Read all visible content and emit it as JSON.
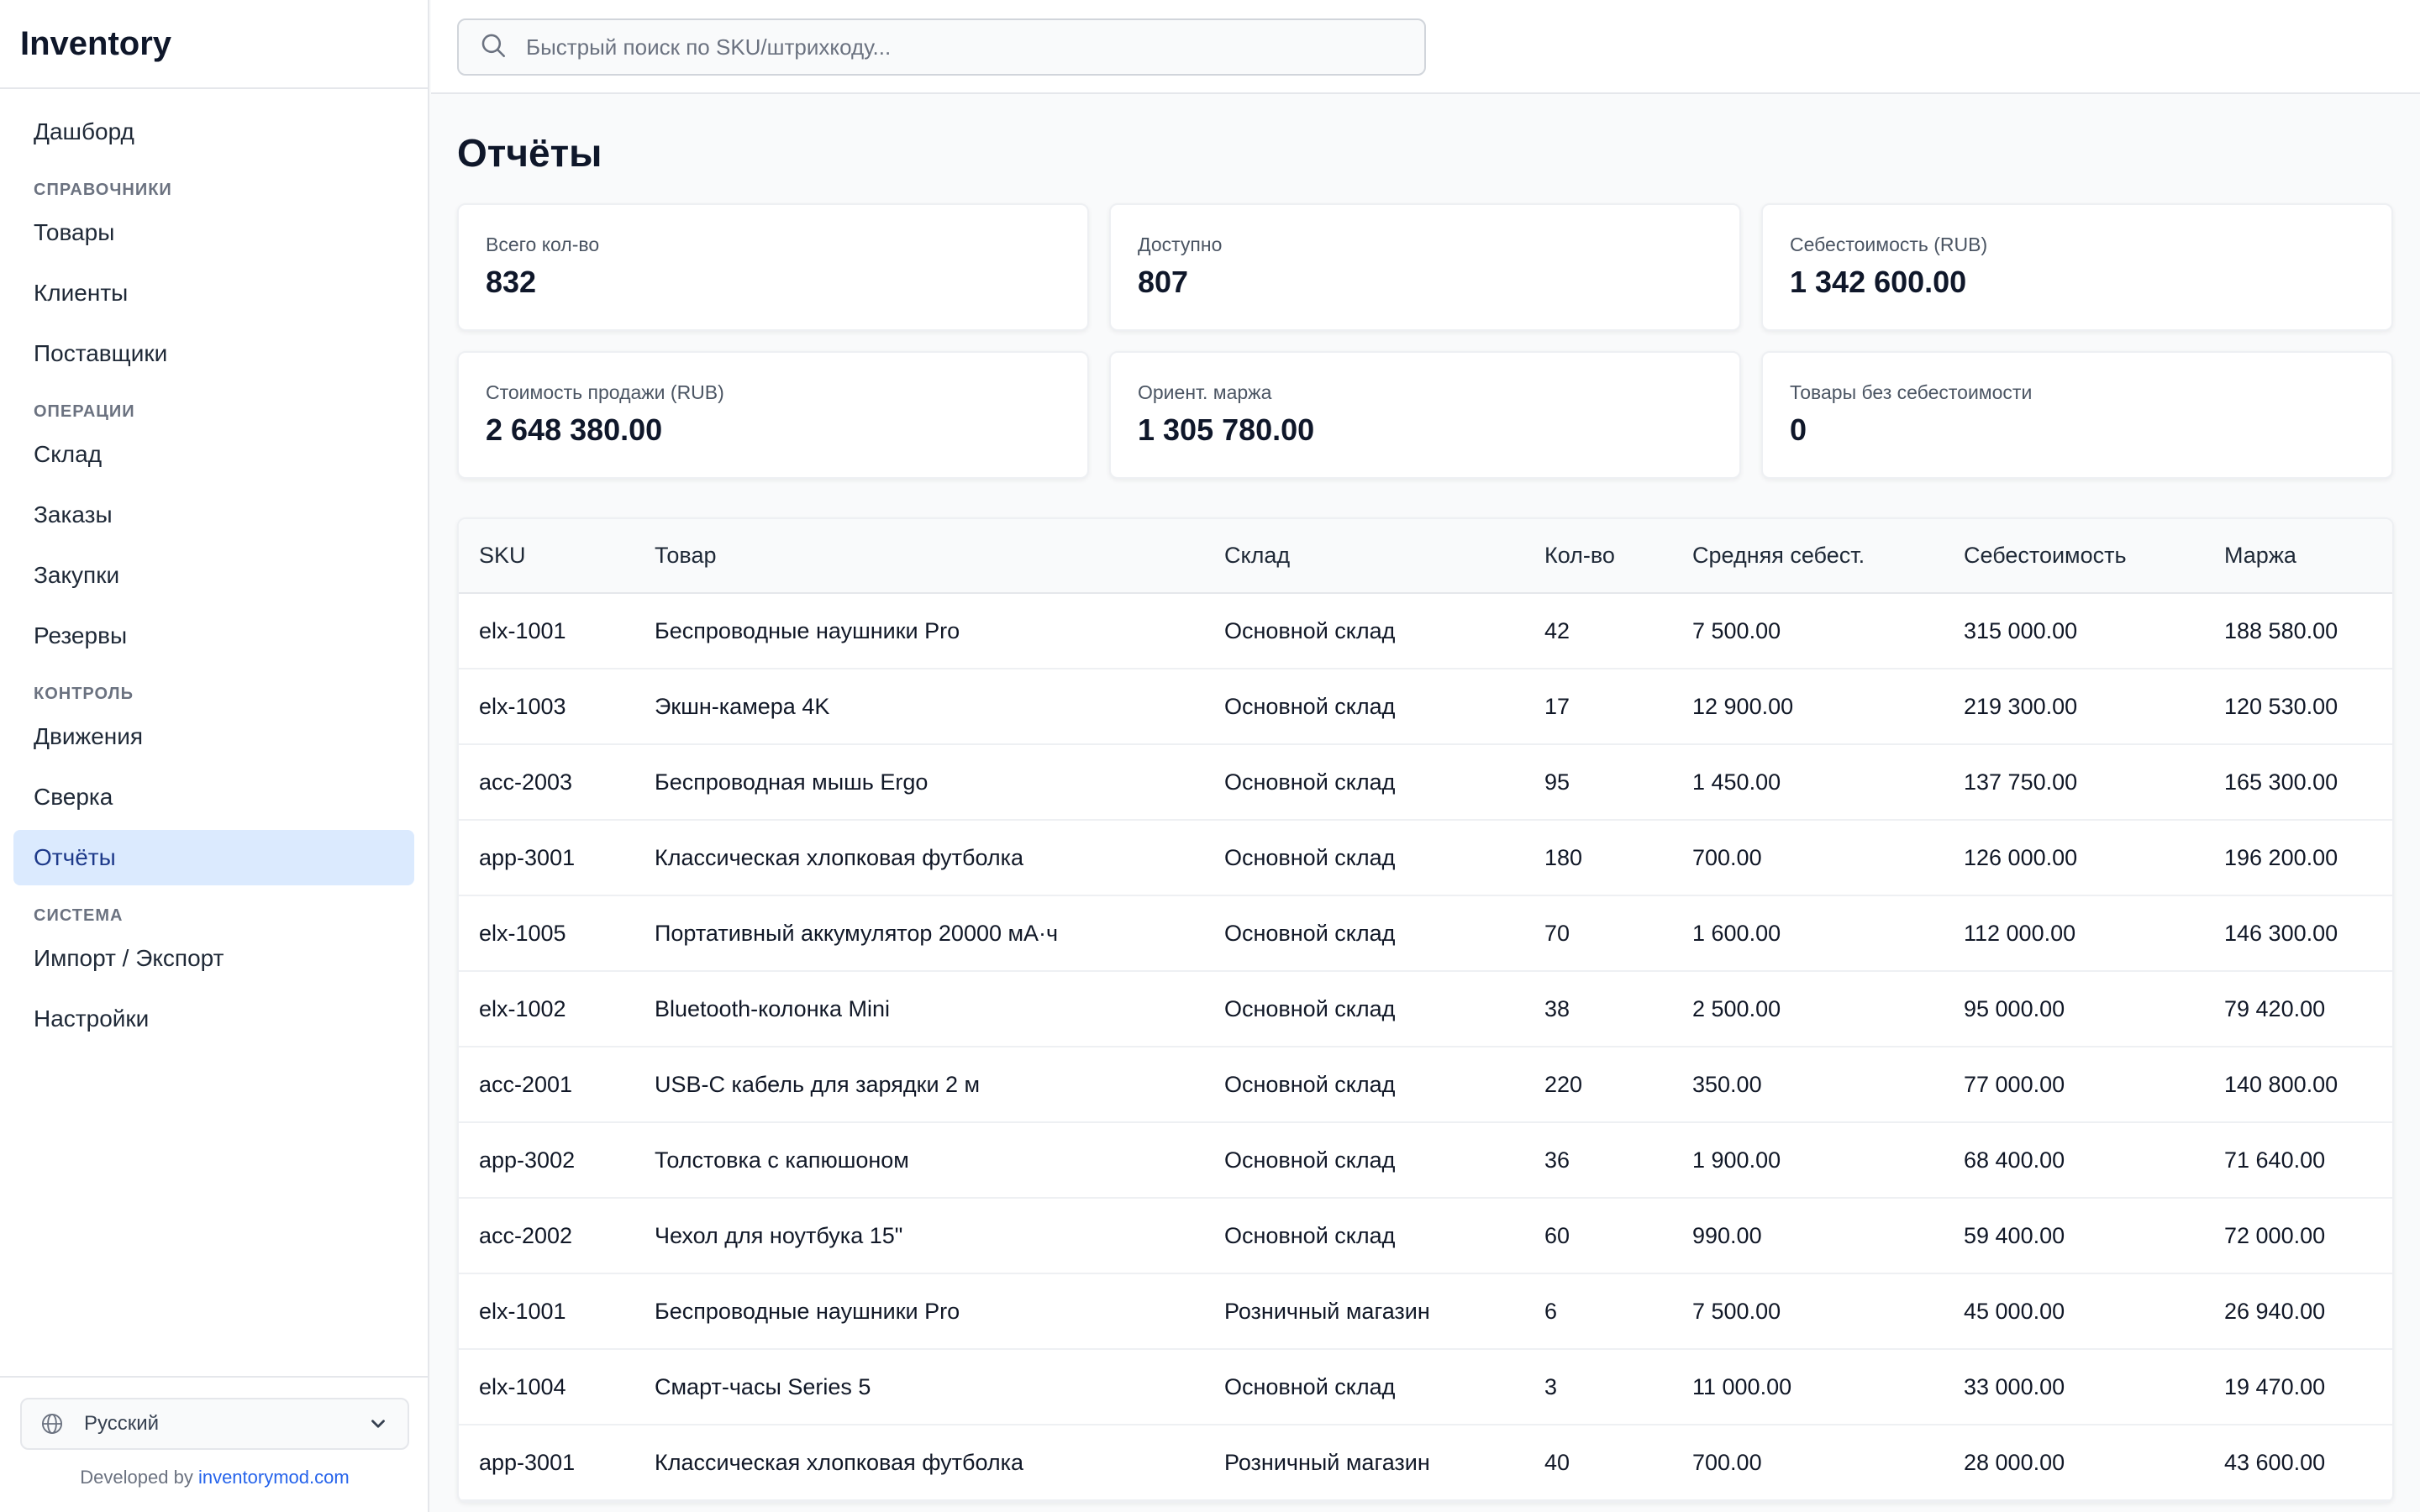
{
  "app": {
    "title": "Inventory"
  },
  "search": {
    "placeholder": "Быстрый поиск по SKU/штрихкоду..."
  },
  "sidebar": {
    "items": [
      {
        "type": "item",
        "label": "Дашборд",
        "name": "sidebar-item-dashboard"
      },
      {
        "type": "section",
        "label": "Справочники",
        "name": "sidebar-section-directories"
      },
      {
        "type": "item",
        "label": "Товары",
        "name": "sidebar-item-products"
      },
      {
        "type": "item",
        "label": "Клиенты",
        "name": "sidebar-item-clients"
      },
      {
        "type": "item",
        "label": "Поставщики",
        "name": "sidebar-item-suppliers"
      },
      {
        "type": "section",
        "label": "Операции",
        "name": "sidebar-section-operations"
      },
      {
        "type": "item",
        "label": "Склад",
        "name": "sidebar-item-warehouse"
      },
      {
        "type": "item",
        "label": "Заказы",
        "name": "sidebar-item-orders"
      },
      {
        "type": "item",
        "label": "Закупки",
        "name": "sidebar-item-purchases"
      },
      {
        "type": "item",
        "label": "Резервы",
        "name": "sidebar-item-reserves"
      },
      {
        "type": "section",
        "label": "Контроль",
        "name": "sidebar-section-control"
      },
      {
        "type": "item",
        "label": "Движения",
        "name": "sidebar-item-movements"
      },
      {
        "type": "item",
        "label": "Сверка",
        "name": "sidebar-item-reconciliation"
      },
      {
        "type": "item",
        "label": "Отчёты",
        "name": "sidebar-item-reports",
        "active": true
      },
      {
        "type": "section",
        "label": "Система",
        "name": "sidebar-section-system"
      },
      {
        "type": "item",
        "label": "Импорт / Экспорт",
        "name": "sidebar-item-import-export"
      },
      {
        "type": "item",
        "label": "Настройки",
        "name": "sidebar-item-settings"
      }
    ],
    "language": {
      "selected": "Русский"
    },
    "developed_by": "Developed by",
    "developer_link": "inventorymod.com"
  },
  "page": {
    "title": "Отчёты"
  },
  "stats": [
    {
      "label": "Всего кол-во",
      "value": "832"
    },
    {
      "label": "Доступно",
      "value": "807"
    },
    {
      "label": "Себестоимость (RUB)",
      "value": "1 342 600.00"
    },
    {
      "label": "Стоимость продажи (RUB)",
      "value": "2 648 380.00"
    },
    {
      "label": "Ориент. маржа",
      "value": "1 305 780.00"
    },
    {
      "label": "Товары без себестоимости",
      "value": "0"
    }
  ],
  "table": {
    "columns": [
      "SKU",
      "Товар",
      "Склад",
      "Кол-во",
      "Средняя себест.",
      "Себестоимость",
      "Маржа"
    ],
    "rows": [
      [
        "elx-1001",
        "Беспроводные наушники Pro",
        "Основной склад",
        "42",
        "7 500.00",
        "315 000.00",
        "188 580.00"
      ],
      [
        "elx-1003",
        "Экшн-камера 4K",
        "Основной склад",
        "17",
        "12 900.00",
        "219 300.00",
        "120 530.00"
      ],
      [
        "acc-2003",
        "Беспроводная мышь Ergo",
        "Основной склад",
        "95",
        "1 450.00",
        "137 750.00",
        "165 300.00"
      ],
      [
        "app-3001",
        "Классическая хлопковая футболка",
        "Основной склад",
        "180",
        "700.00",
        "126 000.00",
        "196 200.00"
      ],
      [
        "elx-1005",
        "Портативный аккумулятор 20000 мА·ч",
        "Основной склад",
        "70",
        "1 600.00",
        "112 000.00",
        "146 300.00"
      ],
      [
        "elx-1002",
        "Bluetooth-колонка Mini",
        "Основной склад",
        "38",
        "2 500.00",
        "95 000.00",
        "79 420.00"
      ],
      [
        "acc-2001",
        "USB-C кабель для зарядки 2 м",
        "Основной склад",
        "220",
        "350.00",
        "77 000.00",
        "140 800.00"
      ],
      [
        "app-3002",
        "Толстовка с капюшоном",
        "Основной склад",
        "36",
        "1 900.00",
        "68 400.00",
        "71 640.00"
      ],
      [
        "acc-2002",
        "Чехол для ноутбука 15\"",
        "Основной склад",
        "60",
        "990.00",
        "59 400.00",
        "72 000.00"
      ],
      [
        "elx-1001",
        "Беспроводные наушники Pro",
        "Розничный магазин",
        "6",
        "7 500.00",
        "45 000.00",
        "26 940.00"
      ],
      [
        "elx-1004",
        "Смарт-часы Series 5",
        "Основной склад",
        "3",
        "11 000.00",
        "33 000.00",
        "19 470.00"
      ],
      [
        "app-3001",
        "Классическая хлопковая футболка",
        "Розничный магазин",
        "40",
        "700.00",
        "28 000.00",
        "43 600.00"
      ]
    ]
  }
}
